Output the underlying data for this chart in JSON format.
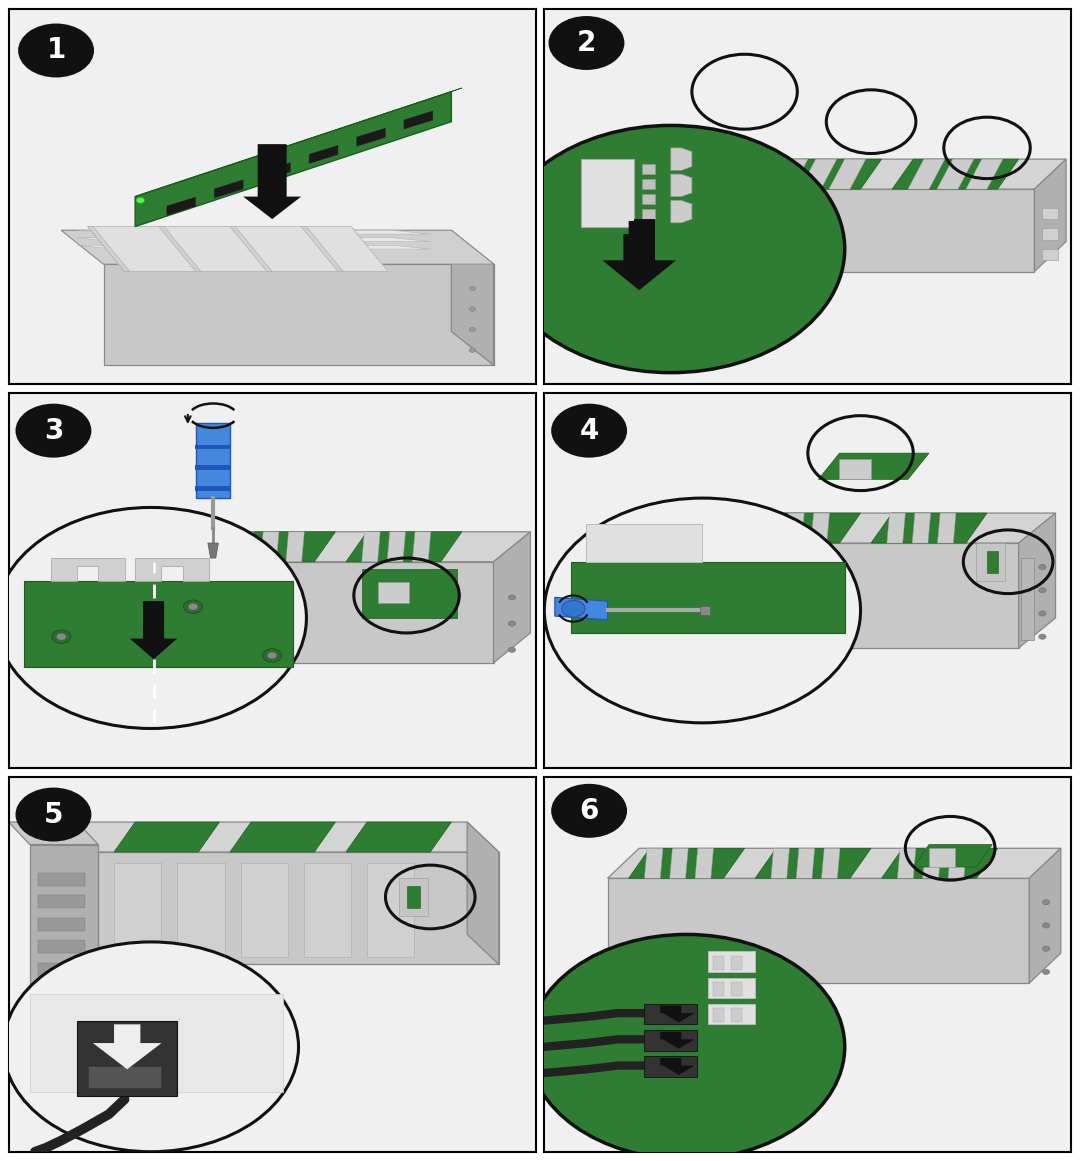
{
  "figure_width": 10.8,
  "figure_height": 11.61,
  "dpi": 100,
  "background_color": "#ffffff",
  "panel_border_color": "#000000",
  "panel_border_lw": 1.5,
  "step_badge_color": "#111111",
  "step_badge_text_color": "#ffffff",
  "step_badge_fontsize": 20,
  "board_color": "#2e7d32",
  "board_edge_color": "#1b5e20",
  "server_top_color": "#d4d4d4",
  "server_front_color": "#c0c0c0",
  "server_right_color": "#a8a8a8",
  "server_edge_color": "#888888",
  "circle_lw": 2.2,
  "arrow_color": "#111111",
  "screwdriver_color": "#4488dd",
  "cable_color": "#222222",
  "white_color": "#ffffff",
  "light_gray": "#e8e8e8",
  "panel_bg": "#f8f8f8",
  "green_fill": "#2e7d32",
  "connector_white": "#d8d8d8",
  "connector_dark": "#444444"
}
